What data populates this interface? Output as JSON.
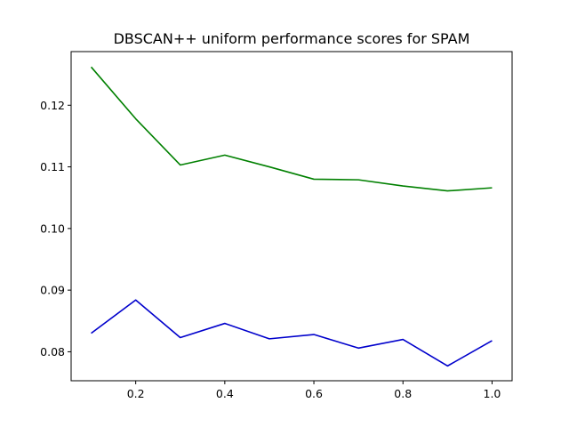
{
  "chart_data": {
    "type": "line",
    "title": "DBSCAN++ uniform performance scores for SPAM",
    "xlabel": "",
    "ylabel": "",
    "x": [
      0.1,
      0.2,
      0.3,
      0.4,
      0.5,
      0.6,
      0.7,
      0.8,
      0.9,
      1.0
    ],
    "xlim": [
      0.055,
      1.045
    ],
    "ylim": [
      0.0753,
      0.1287
    ],
    "xticks": [
      0.2,
      0.4,
      0.6,
      0.8,
      1.0
    ],
    "xtick_labels": [
      "0.2",
      "0.4",
      "0.6",
      "0.8",
      "1.0"
    ],
    "yticks": [
      0.08,
      0.09,
      0.1,
      0.11,
      0.12
    ],
    "ytick_labels": [
      "0.08",
      "0.09",
      "0.10",
      "0.11",
      "0.12"
    ],
    "grid": false,
    "legend": "none",
    "series": [
      {
        "color": "#008000",
        "values": [
          0.1262,
          0.1178,
          0.1103,
          0.1119,
          0.11,
          0.108,
          0.1079,
          0.1069,
          0.1061,
          0.1066
        ]
      },
      {
        "color": "#0000cc",
        "values": [
          0.083,
          0.0884,
          0.0823,
          0.0846,
          0.0821,
          0.0828,
          0.0806,
          0.082,
          0.0777,
          0.0818
        ]
      }
    ]
  }
}
